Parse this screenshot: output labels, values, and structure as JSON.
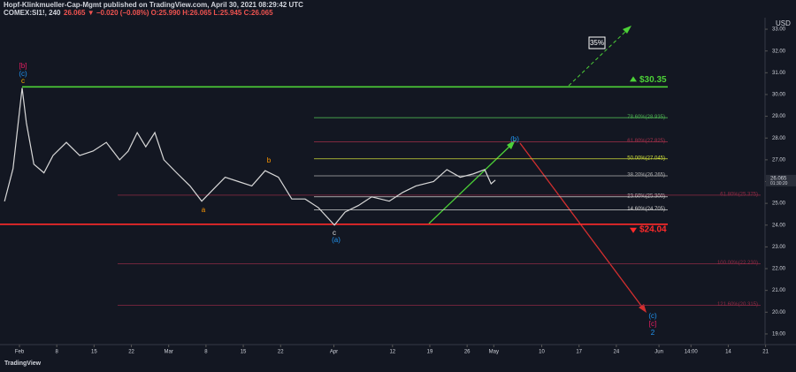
{
  "header": {
    "line1": "Hopf-Klinkmueller-Cap-Mgmt published on TradingView.com, April 30, 2021 08:29:42 UTC",
    "symbol": "COMEX:SI1!, 240",
    "quote": "26.065 ▼ −0.020 (−0.08%) O:25.990 H:26.065 L:25.945 C:26.065"
  },
  "footer": {
    "brand": "TradingView"
  },
  "chart_data": {
    "type": "line",
    "y_axis_label": "USD",
    "series": [
      {
        "name": "COMEX:SI1!",
        "color": "#d8d8d8",
        "x": [
          -2.8,
          -1.2,
          0.5,
          1.3,
          2.7,
          4.6,
          6.3,
          8.8,
          11.3,
          13.8,
          16.3,
          18.8,
          20.4,
          22.1,
          23.7,
          25.4,
          27.1,
          29.5,
          32.0,
          34.2,
          36.2,
          38.6,
          41.1,
          43.6,
          46.1,
          48.6,
          51.1,
          53.6,
          56.1,
          59.1,
          61.1,
          63.6,
          66.1,
          69.4,
          71.9,
          74.4,
          77.7,
          80.2,
          82.7,
          85.1,
          87.3,
          88.5,
          89.3
        ],
        "values": [
          25.09,
          26.6,
          30.3,
          28.7,
          26.8,
          26.4,
          27.2,
          27.8,
          27.2,
          27.4,
          27.8,
          27.0,
          27.4,
          28.25,
          27.6,
          28.25,
          27.0,
          26.4,
          25.8,
          25.1,
          25.6,
          26.2,
          26.0,
          25.8,
          26.5,
          26.2,
          25.2,
          25.2,
          24.8,
          24.0,
          24.6,
          24.9,
          25.3,
          25.1,
          25.5,
          25.8,
          26.0,
          26.55,
          26.2,
          26.35,
          26.55,
          25.9,
          26.07
        ]
      }
    ],
    "last_price": {
      "label": "26.065",
      "value": 26.065,
      "countdown": "01:30:20"
    },
    "xlim": [
      -3.65,
      139.9
    ],
    "ylim": [
      18.51,
      33.53
    ],
    "xticks": [
      {
        "value": 0,
        "label": "Feb"
      },
      {
        "value": 7,
        "label": "8"
      },
      {
        "value": 14,
        "label": "15"
      },
      {
        "value": 21,
        "label": "22"
      },
      {
        "value": 28,
        "label": "Mar"
      },
      {
        "value": 35,
        "label": "8"
      },
      {
        "value": 42,
        "label": "15"
      },
      {
        "value": 49,
        "label": "22"
      },
      {
        "value": 59,
        "label": "Apr"
      },
      {
        "value": 70,
        "label": "12"
      },
      {
        "value": 77,
        "label": "19"
      },
      {
        "value": 84,
        "label": "26"
      },
      {
        "value": 89,
        "label": "May"
      },
      {
        "value": 98,
        "label": "10"
      },
      {
        "value": 105,
        "label": "17"
      },
      {
        "value": 112,
        "label": "24"
      },
      {
        "value": 120,
        "label": "Jun"
      },
      {
        "value": 126,
        "label": "14:00"
      },
      {
        "value": 133,
        "label": "14"
      },
      {
        "value": 140,
        "label": "21"
      }
    ],
    "yticks": [
      {
        "value": 19,
        "label": "19.00"
      },
      {
        "value": 20,
        "label": "20.00"
      },
      {
        "value": 21,
        "label": "21.00"
      },
      {
        "value": 22,
        "label": "22.00"
      },
      {
        "value": 23,
        "label": "23.00"
      },
      {
        "value": 24,
        "label": "24.00"
      },
      {
        "value": 25,
        "label": "25.00"
      },
      {
        "value": 26,
        "label": "26.00"
      },
      {
        "value": 27,
        "label": "27.00"
      },
      {
        "value": 28,
        "label": "28.00"
      },
      {
        "value": 29,
        "label": "29.00"
      },
      {
        "value": 30,
        "label": "30.00"
      },
      {
        "value": 31,
        "label": "31.00"
      },
      {
        "value": 32,
        "label": "32.00"
      },
      {
        "value": 33,
        "label": "33.00"
      }
    ],
    "key_levels": [
      {
        "label": "$30.35",
        "value": 30.35,
        "color": "#4cd137"
      },
      {
        "label": "$24.04",
        "value": 24.04,
        "color": "#ff2a2a"
      }
    ],
    "fib_levels": [
      {
        "label": "78.60%(28.935)",
        "value": 28.935,
        "color": "#4caf50"
      },
      {
        "label": "61.80%(27.825)",
        "value": 27.825,
        "color": "#a3304a"
      },
      {
        "label": "50.00%(27.045)",
        "value": 27.045,
        "color": "#cddc39"
      },
      {
        "label": "38.20%(26.265)",
        "value": 26.265,
        "color": "#b0b0b0"
      },
      {
        "label": "23.60%(25.300)",
        "value": 25.3,
        "color": "#d0d0d0"
      },
      {
        "label": "14.60%(24.705)",
        "value": 24.705,
        "color": "#d0d0d0"
      },
      {
        "label": "61.80%(25.375)",
        "value": 25.375,
        "color": "#8e2a44"
      },
      {
        "label": "100.00%(22.230)",
        "value": 22.23,
        "color": "#8e2a44"
      },
      {
        "label": "121.60%(20.315)",
        "value": 20.315,
        "color": "#8e2a44"
      }
    ],
    "wave_labels": [
      "[b]",
      "(c)",
      "c",
      "b",
      "a",
      "c",
      "(a)",
      "(b)",
      "(c)",
      "[c]",
      "2",
      "35%"
    ]
  }
}
